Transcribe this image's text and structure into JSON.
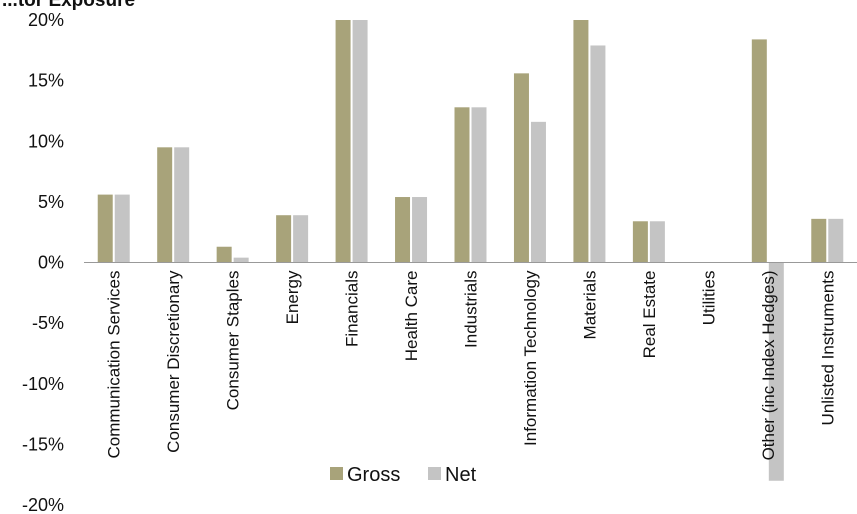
{
  "chart_data": {
    "type": "bar",
    "title": "...tor Exposure",
    "ylim": [
      -20,
      20
    ],
    "yticks": [
      -20,
      -15,
      -10,
      -5,
      0,
      5,
      10,
      15,
      20
    ],
    "ytick_labels": [
      "-20%",
      "-15%",
      "-10%",
      "-5%",
      "0%",
      "5%",
      "10%",
      "15%",
      "20%"
    ],
    "categories": [
      "Communication Services",
      "Consumer Discretionary",
      "Consumer Staples",
      "Energy",
      "Financials",
      "Health Care",
      "Industrials",
      "Information Technology",
      "Materials",
      "Real Estate",
      "Utilities",
      "Other (inc Index Hedges)",
      "Unlisted Instruments"
    ],
    "series": [
      {
        "name": "Gross",
        "color": "#a8a37a",
        "values": [
          5.6,
          9.5,
          1.3,
          3.9,
          20.0,
          5.4,
          12.8,
          15.6,
          20.0,
          3.4,
          0.0,
          18.4,
          3.6
        ]
      },
      {
        "name": "Net",
        "color": "#c4c4c4",
        "values": [
          5.6,
          9.5,
          0.4,
          3.9,
          20.0,
          5.4,
          12.8,
          11.6,
          17.9,
          3.4,
          0.0,
          -18.0,
          3.6
        ]
      }
    ],
    "legend_position": "bottom-center",
    "grid": false
  }
}
